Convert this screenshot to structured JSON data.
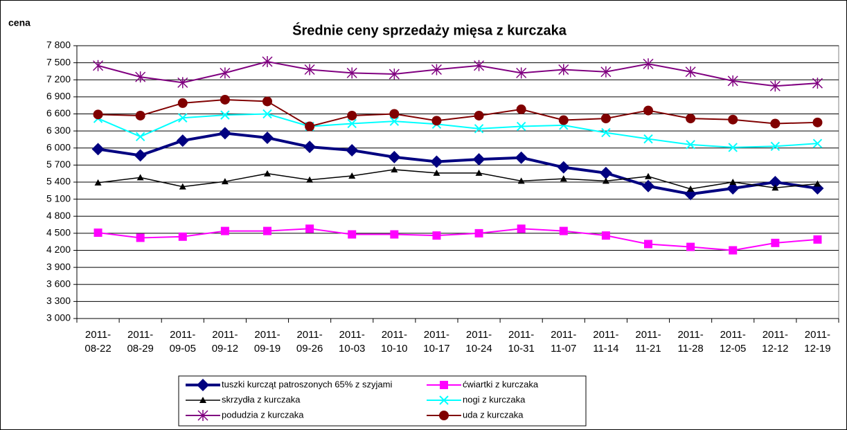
{
  "chart_data": {
    "type": "line",
    "title": "Średnie ceny sprzedaży mięsa z kurczaka",
    "ylabel": "cena",
    "categories": [
      "2011-08-22",
      "2011-08-29",
      "2011-09-05",
      "2011-09-12",
      "2011-09-19",
      "2011-09-26",
      "2011-10-03",
      "2011-10-10",
      "2011-10-17",
      "2011-10-24",
      "2011-10-31",
      "2011-11-07",
      "2011-11-14",
      "2011-11-21",
      "2011-11-28",
      "2011-12-05",
      "2011-12-12",
      "2011-12-19"
    ],
    "series": [
      {
        "name": "tuszki kurcząt patroszonych 65% z szyjami",
        "color": "#000080",
        "marker": "diamond",
        "values": [
          5980,
          5870,
          6130,
          6260,
          6180,
          6020,
          5960,
          5840,
          5760,
          5800,
          5830,
          5660,
          5560,
          5330,
          5190,
          5290,
          5400,
          5290
        ]
      },
      {
        "name": "ćwiartki z kurczaka",
        "color": "#ff00ff",
        "marker": "square",
        "values": [
          4510,
          4420,
          4440,
          4540,
          4540,
          4580,
          4480,
          4480,
          4460,
          4500,
          4580,
          4540,
          4460,
          4310,
          4260,
          4200,
          4330,
          4390
        ]
      },
      {
        "name": "skrzydła z kurczaka",
        "color": "#000000",
        "marker": "triangle",
        "values": [
          5390,
          5480,
          5320,
          5410,
          5550,
          5440,
          5510,
          5620,
          5560,
          5560,
          5420,
          5460,
          5420,
          5500,
          5280,
          5400,
          5300,
          5370
        ]
      },
      {
        "name": "nogi z kurczaka",
        "color": "#00ffff",
        "marker": "x",
        "values": [
          6520,
          6200,
          6530,
          6580,
          6600,
          6380,
          6430,
          6470,
          6420,
          6340,
          6380,
          6400,
          6270,
          6160,
          6060,
          6010,
          6030,
          6080
        ]
      },
      {
        "name": "podudzia z kurczaka",
        "color": "#800080",
        "marker": "star",
        "values": [
          7450,
          7250,
          7150,
          7320,
          7520,
          7380,
          7320,
          7300,
          7380,
          7450,
          7320,
          7380,
          7340,
          7480,
          7340,
          7180,
          7090,
          7140
        ]
      },
      {
        "name": "uda z kurczaka",
        "color": "#800000",
        "marker": "circle",
        "values": [
          6590,
          6570,
          6790,
          6850,
          6820,
          6380,
          6570,
          6600,
          6480,
          6570,
          6680,
          6490,
          6520,
          6660,
          6520,
          6500,
          6430,
          6450
        ]
      }
    ],
    "ylim": [
      3000,
      7800
    ],
    "yticks": [
      {
        "value": 3000,
        "label": "3 000"
      },
      {
        "value": 3300,
        "label": "3 300"
      },
      {
        "value": 3600,
        "label": "3 600"
      },
      {
        "value": 3900,
        "label": "3 900"
      },
      {
        "value": 4200,
        "label": "4 200"
      },
      {
        "value": 4500,
        "label": "4 500"
      },
      {
        "value": 4800,
        "label": "4 800"
      },
      {
        "value": 5100,
        "label": "5 100"
      },
      {
        "value": 5400,
        "label": "5 400"
      },
      {
        "value": 5700,
        "label": "5 700"
      },
      {
        "value": 6000,
        "label": "6 000"
      },
      {
        "value": 6300,
        "label": "6 300"
      },
      {
        "value": 6600,
        "label": "6 600"
      },
      {
        "value": 6900,
        "label": "6 900"
      },
      {
        "value": 7200,
        "label": "7 200"
      },
      {
        "value": 7500,
        "label": "7 500"
      },
      {
        "value": 7800,
        "label": "7 800"
      }
    ],
    "grid": true
  }
}
